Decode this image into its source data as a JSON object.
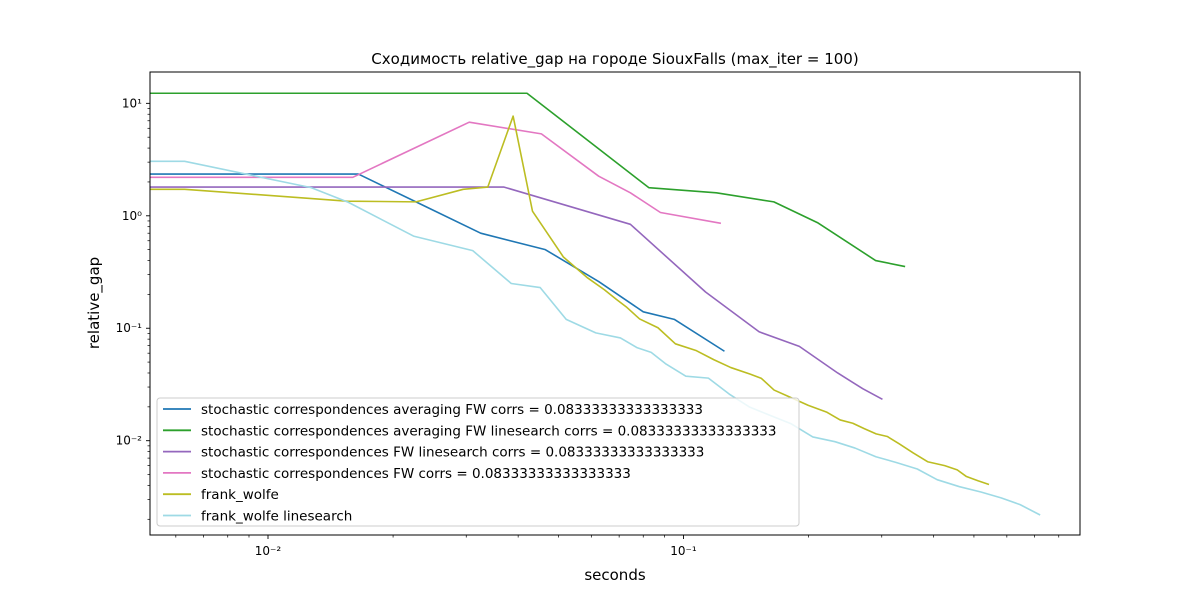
{
  "chart_data": {
    "type": "line",
    "title": "Сходимость relative_gap на городе SiouxFalls  (max_iter = 100)",
    "xlabel": "seconds",
    "ylabel": "relative_gap",
    "xscale": "log",
    "yscale": "log",
    "xlim": [
      0.0052,
      0.9
    ],
    "ylim": [
      0.00145,
      19
    ],
    "x_major_ticks": [
      {
        "value": 0.01,
        "label": "10⁻²"
      },
      {
        "value": 0.1,
        "label": "10⁻¹"
      }
    ],
    "y_major_ticks": [
      {
        "value": 0.01,
        "label": "10⁻²"
      },
      {
        "value": 0.1,
        "label": "10⁻¹"
      },
      {
        "value": 1,
        "label": "10⁰"
      },
      {
        "value": 10,
        "label": "10¹"
      }
    ],
    "grid": false,
    "legend_position": "lower-left",
    "series": [
      {
        "name": "stochastic correspondences averaging FW  corrs = 0.08333333333333333",
        "color": "#1f77b4",
        "x": [
          0.005,
          0.0165,
          0.0235,
          0.0325,
          0.0465,
          0.0625,
          0.08,
          0.095,
          0.125
        ],
        "y": [
          2.35,
          2.35,
          1.25,
          0.7,
          0.5,
          0.26,
          0.14,
          0.12,
          0.063
        ]
      },
      {
        "name": "stochastic correspondences averaging FW linesearch corrs = 0.08333333333333333",
        "color": "#2ca02c",
        "x": [
          0.005,
          0.042,
          0.0825,
          0.12,
          0.165,
          0.21,
          0.29,
          0.34
        ],
        "y": [
          12.3,
          12.3,
          1.78,
          1.6,
          1.33,
          0.87,
          0.4,
          0.355
        ]
      },
      {
        "name": "stochastic correspondences FW linesearch corrs = 0.08333333333333333",
        "color": "#9467bd",
        "x": [
          0.005,
          0.037,
          0.0745,
          0.113,
          0.152,
          0.19,
          0.235,
          0.27,
          0.3
        ],
        "y": [
          1.8,
          1.8,
          0.84,
          0.21,
          0.093,
          0.069,
          0.04,
          0.029,
          0.0235
        ]
      },
      {
        "name": "stochastic correspondences FW corrs = 0.08333333333333333",
        "color": "#e377c2",
        "x": [
          0.005,
          0.016,
          0.0305,
          0.0455,
          0.0625,
          0.0745,
          0.088,
          0.1225
        ],
        "y": [
          2.2,
          2.2,
          6.8,
          5.35,
          2.25,
          1.6,
          1.07,
          0.86
        ]
      },
      {
        "name": "frank_wolfe",
        "color": "#bcbd22",
        "x": [
          0.005,
          0.0063,
          0.0155,
          0.0227,
          0.0295,
          0.0338,
          0.0389,
          0.0433,
          0.0514,
          0.0588,
          0.0645,
          0.069,
          0.0728,
          0.0784,
          0.0868,
          0.0956,
          0.1074,
          0.1182,
          0.13,
          0.1447,
          0.154,
          0.1652,
          0.1812,
          0.1997,
          0.2215,
          0.2382,
          0.2555,
          0.2722,
          0.2908,
          0.3094,
          0.3301,
          0.3568,
          0.3868,
          0.4252,
          0.4558,
          0.4797,
          0.5113,
          0.5413
        ],
        "y": [
          1.72,
          1.72,
          1.35,
          1.33,
          1.72,
          1.8,
          7.7,
          1.1,
          0.43,
          0.28,
          0.22,
          0.18,
          0.155,
          0.121,
          0.101,
          0.0727,
          0.0632,
          0.0526,
          0.0447,
          0.0391,
          0.0358,
          0.0282,
          0.0242,
          0.0206,
          0.0179,
          0.0153,
          0.0143,
          0.0128,
          0.0115,
          0.0109,
          0.0094,
          0.0078,
          0.0065,
          0.006,
          0.0055,
          0.0048,
          0.0044,
          0.0041
        ]
      },
      {
        "name": "frank_wolfe linesearch",
        "color": "#9edae5",
        "x": [
          0.005,
          0.0063,
          0.0127,
          0.0156,
          0.0224,
          0.0311,
          0.0385,
          0.0452,
          0.0522,
          0.0615,
          0.0705,
          0.0774,
          0.0836,
          0.0908,
          0.1013,
          0.1148,
          0.1288,
          0.1439,
          0.1591,
          0.1812,
          0.2047,
          0.2315,
          0.2587,
          0.2904,
          0.3251,
          0.3653,
          0.4078,
          0.4615,
          0.5197,
          0.5813,
          0.6458,
          0.7188
        ],
        "y": [
          3.05,
          3.05,
          1.78,
          1.32,
          0.66,
          0.49,
          0.25,
          0.23,
          0.12,
          0.091,
          0.082,
          0.067,
          0.061,
          0.048,
          0.0375,
          0.036,
          0.026,
          0.02,
          0.0172,
          0.0142,
          0.0108,
          0.0098,
          0.0086,
          0.0072,
          0.0064,
          0.0056,
          0.0045,
          0.0039,
          0.0035,
          0.0031,
          0.0027,
          0.0022
        ]
      }
    ]
  }
}
